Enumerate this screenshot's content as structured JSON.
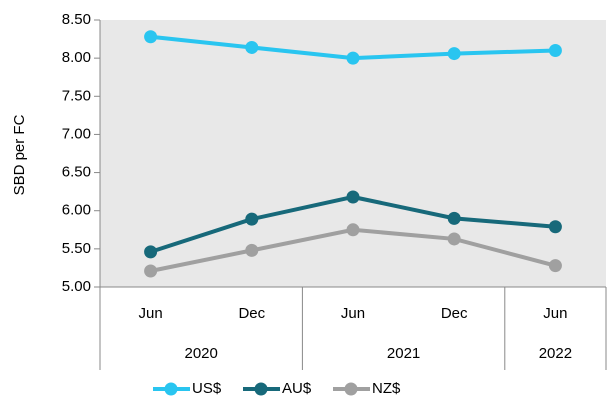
{
  "chart_data": {
    "type": "line",
    "y_label": "SBD per FC",
    "categories": [
      "Jun",
      "Dec",
      "Jun",
      "Dec",
      "Jun"
    ],
    "groups": [
      {
        "label": "2020",
        "count": 2
      },
      {
        "label": "2021",
        "count": 2
      },
      {
        "label": "2022",
        "count": 1
      }
    ],
    "series": [
      {
        "name": "US$",
        "color": "#29c5f0",
        "values": [
          8.28,
          8.14,
          8.0,
          8.06,
          8.1
        ]
      },
      {
        "name": "AU$",
        "color": "#17697a",
        "values": [
          5.46,
          5.89,
          6.18,
          5.9,
          5.79
        ]
      },
      {
        "name": "NZ$",
        "color": "#a0a0a0",
        "values": [
          5.21,
          5.48,
          5.75,
          5.63,
          5.28
        ]
      }
    ],
    "ylim": [
      5,
      8.5
    ],
    "yticks": [
      {
        "value": 5,
        "label": "5.00"
      },
      {
        "value": 5.5,
        "label": "5.50"
      },
      {
        "value": 6,
        "label": "6.00"
      },
      {
        "value": 6.5,
        "label": "6.50"
      },
      {
        "value": 7,
        "label": "7.00"
      },
      {
        "value": 7.5,
        "label": "7.50"
      },
      {
        "value": 8,
        "label": "8.00"
      },
      {
        "value": 8.5,
        "label": "8.50"
      }
    ],
    "background": "#e8e8e8",
    "legend": "bottom"
  }
}
